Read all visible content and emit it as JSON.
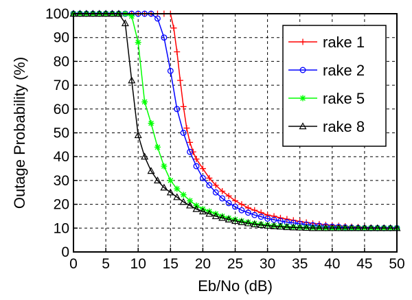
{
  "chart_data": {
    "type": "line",
    "xlabel": "Eb/No (dB)",
    "ylabel": "Outage Probability (%)",
    "xlim": [
      0,
      50
    ],
    "ylim": [
      0,
      100
    ],
    "xticks": [
      0,
      5,
      10,
      15,
      20,
      25,
      30,
      35,
      40,
      45,
      50
    ],
    "yticks": [
      0,
      10,
      20,
      30,
      40,
      50,
      60,
      70,
      80,
      90,
      100
    ],
    "grid": true,
    "legend_position": "top-right",
    "series": [
      {
        "name": "rake 1",
        "color": "#ff0000",
        "marker": "plus",
        "x": [
          0,
          1,
          2,
          3,
          4,
          5,
          6,
          7,
          8,
          9,
          10,
          11,
          12,
          13,
          14,
          15,
          15.5,
          16,
          16.5,
          17,
          17.5,
          18,
          18.5,
          19,
          20,
          21,
          22,
          23,
          24,
          25,
          26,
          27,
          28,
          29,
          30,
          31,
          32,
          33,
          34,
          35,
          36,
          37,
          38,
          39,
          40,
          41,
          42,
          43,
          44,
          45,
          46,
          47,
          48,
          49,
          50
        ],
        "y": [
          100,
          100,
          100,
          100,
          100,
          100,
          100,
          100,
          100,
          100,
          100,
          100,
          100,
          100,
          100,
          100,
          94,
          84,
          72,
          61,
          52,
          46,
          42,
          39,
          35,
          31,
          28,
          25.5,
          23.5,
          21.5,
          20,
          18.5,
          17.5,
          16.5,
          15.5,
          15,
          14.3,
          13.8,
          13.3,
          12.8,
          12.4,
          12,
          11.7,
          11.4,
          11.2,
          11,
          10.8,
          10.6,
          10.5,
          10.3,
          10.2,
          10.1,
          10.1,
          10,
          10
        ]
      },
      {
        "name": "rake 2",
        "color": "#0000ff",
        "marker": "circle",
        "x": [
          0,
          1,
          2,
          3,
          4,
          5,
          6,
          7,
          8,
          9,
          10,
          11,
          12,
          13,
          14,
          15,
          16,
          17,
          18,
          19,
          20,
          21,
          22,
          23,
          24,
          25,
          26,
          27,
          28,
          29,
          30,
          31,
          32,
          33,
          34,
          35,
          36,
          37,
          38,
          39,
          40,
          41,
          42,
          43,
          44,
          45,
          46,
          47,
          48,
          49,
          50
        ],
        "y": [
          100,
          100,
          100,
          100,
          100,
          100,
          100,
          100,
          100,
          100,
          100,
          100,
          100,
          98,
          90,
          76,
          60,
          50,
          42,
          36,
          31,
          28,
          25,
          22.5,
          20.5,
          19,
          17.5,
          16.5,
          15.5,
          14.8,
          14,
          13.5,
          13,
          12.5,
          12.2,
          11.8,
          11.5,
          11.2,
          11,
          10.8,
          10.6,
          10.5,
          10.3,
          10.2,
          10.1,
          10,
          10,
          10,
          10,
          10,
          10
        ]
      },
      {
        "name": "rake 5",
        "color": "#00ff00",
        "marker": "star",
        "x": [
          0,
          1,
          2,
          3,
          4,
          5,
          6,
          7,
          8,
          9,
          10,
          11,
          12,
          13,
          14,
          15,
          16,
          17,
          18,
          19,
          20,
          21,
          22,
          23,
          24,
          25,
          26,
          27,
          28,
          29,
          30,
          31,
          32,
          33,
          34,
          35,
          36,
          37,
          38,
          39,
          40,
          41,
          42,
          43,
          44,
          45,
          46,
          47,
          48,
          49,
          50
        ],
        "y": [
          100,
          100,
          100,
          100,
          100,
          100,
          100,
          100,
          100,
          99,
          88,
          63,
          54,
          44,
          36,
          30,
          26.5,
          24,
          21.5,
          19.5,
          18,
          17,
          16,
          15,
          14.2,
          13.6,
          13,
          12.5,
          12,
          11.7,
          11.4,
          11.1,
          10.9,
          10.7,
          10.5,
          10.4,
          10.3,
          10.2,
          10.1,
          10,
          10,
          10,
          10,
          10,
          10,
          10,
          10,
          10,
          10,
          10,
          10
        ]
      },
      {
        "name": "rake 8",
        "color": "#000000",
        "marker": "triangle",
        "x": [
          0,
          1,
          2,
          3,
          4,
          5,
          6,
          7,
          8,
          9,
          10,
          11,
          12,
          13,
          14,
          15,
          16,
          17,
          18,
          19,
          20,
          21,
          22,
          23,
          24,
          25,
          26,
          27,
          28,
          29,
          30,
          31,
          32,
          33,
          34,
          35,
          36,
          37,
          38,
          39,
          40,
          41,
          42,
          43,
          44,
          45,
          46,
          47,
          48,
          49,
          50
        ],
        "y": [
          100,
          100,
          100,
          100,
          100,
          100,
          100,
          100,
          96,
          72,
          49,
          40,
          34,
          30,
          27,
          25,
          23,
          21,
          19.5,
          18,
          17,
          16,
          15,
          14.3,
          13.6,
          13,
          12.5,
          12,
          11.6,
          11.3,
          11,
          10.8,
          10.6,
          10.4,
          10.3,
          10.2,
          10.1,
          10,
          10,
          10,
          10,
          10,
          10,
          10,
          10,
          10,
          10,
          10,
          10,
          10,
          10
        ]
      }
    ]
  }
}
